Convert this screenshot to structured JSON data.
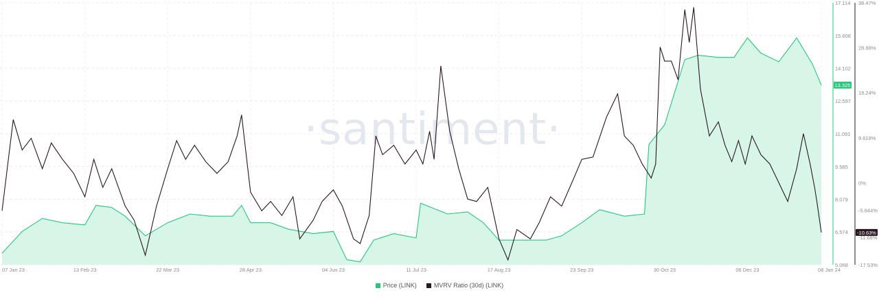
{
  "watermark": "·santiment·",
  "legend": {
    "price_label": "Price (LINK)",
    "mvrv_label": "MVRV Ratio (30d) (LINK)"
  },
  "current": {
    "price_badge": "13.325",
    "mvrv_badge": "-10.63%"
  },
  "colors": {
    "price": "#26c77c",
    "price_fill": "#d8f6e7",
    "mvrv": "#2a1523",
    "price_badge_bg": "#26c77c",
    "mvrv_badge_bg": "#2a1523"
  },
  "chart_data": {
    "type": "area",
    "x_tick_labels": [
      "07 Jan 23",
      "13 Feb 23",
      "22 Mar 23",
      "28 Apr 23",
      "04 Jun 23",
      "11 Jul 23",
      "17 Aug 23",
      "23 Sep 23",
      "30 Oct 23",
      "06 Dec 23",
      "08 Jan 24"
    ],
    "price_axis": {
      "ticks": [
        "17.114",
        "15.608",
        "14.102",
        "12.597",
        "11.091",
        "9.585",
        "8.079",
        "6.574",
        "5.068"
      ],
      "ylim": [
        5.068,
        17.114
      ]
    },
    "mvrv_axis": {
      "ticks": [
        "38.47%",
        "28.88%",
        "19.24%",
        "9.618%",
        "0%",
        "-5.844%",
        "-11.68%",
        "-17.53%"
      ],
      "tick_values": [
        38.47,
        28.88,
        19.24,
        9.618,
        0,
        -5.844,
        -11.68,
        -17.53
      ]
    },
    "series": [
      {
        "name": "Price (LINK)",
        "axis": "price",
        "points": [
          [
            "07 Jan 23",
            5.6
          ],
          [
            "16 Jan 23",
            6.6
          ],
          [
            "25 Jan 23",
            7.2
          ],
          [
            "03 Feb 23",
            7.0
          ],
          [
            "13 Feb 23",
            6.9
          ],
          [
            "18 Feb 23",
            7.8
          ],
          [
            "25 Feb 23",
            7.7
          ],
          [
            "03 Mar 23",
            7.3
          ],
          [
            "12 Mar 23",
            6.4
          ],
          [
            "22 Mar 23",
            7.0
          ],
          [
            "01 Apr 23",
            7.4
          ],
          [
            "10 Apr 23",
            7.3
          ],
          [
            "20 Apr 23",
            7.3
          ],
          [
            "24 Apr 23",
            7.8
          ],
          [
            "28 Apr 23",
            7.0
          ],
          [
            "07 May 23",
            7.0
          ],
          [
            "15 May 23",
            6.7
          ],
          [
            "26 May 23",
            6.5
          ],
          [
            "04 Jun 23",
            6.6
          ],
          [
            "10 Jun 23",
            5.3
          ],
          [
            "16 Jun 23",
            5.2
          ],
          [
            "22 Jun 23",
            6.2
          ],
          [
            "01 Jul 23",
            6.5
          ],
          [
            "11 Jul 23",
            6.3
          ],
          [
            "13 Jul 23",
            7.9
          ],
          [
            "25 Jul 23",
            7.4
          ],
          [
            "03 Aug 23",
            7.5
          ],
          [
            "10 Aug 23",
            7.0
          ],
          [
            "17 Aug 23",
            6.2
          ],
          [
            "29 Aug 23",
            6.2
          ],
          [
            "07 Sep 23",
            6.2
          ],
          [
            "14 Sep 23",
            6.4
          ],
          [
            "23 Sep 23",
            7.0
          ],
          [
            "01 Oct 23",
            7.6
          ],
          [
            "12 Oct 23",
            7.3
          ],
          [
            "21 Oct 23",
            7.4
          ],
          [
            "23 Oct 23",
            10.6
          ],
          [
            "30 Oct 23",
            11.5
          ],
          [
            "08 Nov 23",
            14.5
          ],
          [
            "14 Nov 23",
            14.7
          ],
          [
            "23 Nov 23",
            14.6
          ],
          [
            "30 Nov 23",
            14.6
          ],
          [
            "06 Dec 23",
            15.5
          ],
          [
            "12 Dec 23",
            14.8
          ],
          [
            "20 Dec 23",
            14.4
          ],
          [
            "28 Dec 23",
            15.5
          ],
          [
            "04 Jan 24",
            14.3
          ],
          [
            "08 Jan 24",
            13.325
          ]
        ]
      },
      {
        "name": "MVRV Ratio (30d) (LINK)",
        "axis": "mvrv",
        "unit": "%",
        "points": [
          [
            "07 Jan 23",
            -6.0
          ],
          [
            "12 Jan 23",
            13.5
          ],
          [
            "16 Jan 23",
            7.0
          ],
          [
            "20 Jan 23",
            9.5
          ],
          [
            "25 Jan 23",
            3.0
          ],
          [
            "29 Jan 23",
            8.5
          ],
          [
            "03 Feb 23",
            5.0
          ],
          [
            "08 Feb 23",
            2.0
          ],
          [
            "13 Feb 23",
            -3.0
          ],
          [
            "17 Feb 23",
            5.0
          ],
          [
            "21 Feb 23",
            -1.0
          ],
          [
            "25 Feb 23",
            3.0
          ],
          [
            "03 Mar 23",
            -5.0
          ],
          [
            "07 Mar 23",
            -8.0
          ],
          [
            "12 Mar 23",
            -15.5
          ],
          [
            "17 Mar 23",
            -5.0
          ],
          [
            "22 Mar 23",
            3.0
          ],
          [
            "26 Mar 23",
            9.0
          ],
          [
            "30 Mar 23",
            5.0
          ],
          [
            "03 Apr 23",
            8.0
          ],
          [
            "08 Apr 23",
            4.5
          ],
          [
            "13 Apr 23",
            2.0
          ],
          [
            "18 Apr 23",
            4.5
          ],
          [
            "22 Apr 23",
            10.0
          ],
          [
            "24 Apr 23",
            14.5
          ],
          [
            "28 Apr 23",
            -2.0
          ],
          [
            "03 May 23",
            -6.0
          ],
          [
            "07 May 23",
            -4.0
          ],
          [
            "12 May 23",
            -7.0
          ],
          [
            "17 May 23",
            -3.0
          ],
          [
            "20 May 23",
            -12.0
          ],
          [
            "26 May 23",
            -8.0
          ],
          [
            "30 May 23",
            -4.0
          ],
          [
            "04 Jun 23",
            -1.5
          ],
          [
            "08 Jun 23",
            -5.0
          ],
          [
            "13 Jun 23",
            -12.0
          ],
          [
            "16 Jun 23",
            -13.0
          ],
          [
            "20 Jun 23",
            -7.0
          ],
          [
            "23 Jun 23",
            10.0
          ],
          [
            "26 Jun 23",
            6.0
          ],
          [
            "01 Jul 23",
            8.0
          ],
          [
            "06 Jul 23",
            4.0
          ],
          [
            "11 Jul 23",
            7.0
          ],
          [
            "14 Jul 23",
            4.0
          ],
          [
            "17 Jul 23",
            11.0
          ],
          [
            "19 Jul 23",
            5.0
          ],
          [
            "22 Jul 23",
            25.0
          ],
          [
            "26 Jul 23",
            11.0
          ],
          [
            "30 Jul 23",
            3.0
          ],
          [
            "03 Aug 23",
            -3.5
          ],
          [
            "07 Aug 23",
            -4.0
          ],
          [
            "12 Aug 23",
            -1.0
          ],
          [
            "17 Aug 23",
            -12.0
          ],
          [
            "21 Aug 23",
            -16.5
          ],
          [
            "25 Aug 23",
            -10.0
          ],
          [
            "31 Aug 23",
            -12.0
          ],
          [
            "04 Sep 23",
            -8.5
          ],
          [
            "09 Sep 23",
            -3.0
          ],
          [
            "14 Sep 23",
            -5.0
          ],
          [
            "19 Sep 23",
            0.5
          ],
          [
            "23 Sep 23",
            5.0
          ],
          [
            "28 Sep 23",
            5.5
          ],
          [
            "04 Oct 23",
            14.0
          ],
          [
            "09 Oct 23",
            19.0
          ],
          [
            "12 Oct 23",
            10.0
          ],
          [
            "16 Oct 23",
            8.0
          ],
          [
            "20 Oct 23",
            4.0
          ],
          [
            "24 Oct 23",
            1.0
          ],
          [
            "26 Oct 23",
            4.0
          ],
          [
            "28 Oct 23",
            29.0
          ],
          [
            "30 Oct 23",
            26.0
          ],
          [
            "02 Nov 23",
            26.0
          ],
          [
            "05 Nov 23",
            22.0
          ],
          [
            "08 Nov 23",
            37.0
          ],
          [
            "10 Nov 23",
            30.0
          ],
          [
            "12 Nov 23",
            37.5
          ],
          [
            "15 Nov 23",
            20.0
          ],
          [
            "19 Nov 23",
            10.0
          ],
          [
            "23 Nov 23",
            13.0
          ],
          [
            "26 Nov 23",
            8.0
          ],
          [
            "29 Nov 23",
            4.5
          ],
          [
            "02 Dec 23",
            9.0
          ],
          [
            "05 Dec 23",
            4.0
          ],
          [
            "08 Dec 23",
            10.0
          ],
          [
            "12 Dec 23",
            6.0
          ],
          [
            "16 Dec 23",
            4.0
          ],
          [
            "20 Dec 23",
            0.0
          ],
          [
            "24 Dec 23",
            -4.0
          ],
          [
            "28 Dec 23",
            3.0
          ],
          [
            "31 Dec 23",
            10.5
          ],
          [
            "03 Jan 24",
            4.0
          ],
          [
            "05 Jan 24",
            -1.0
          ],
          [
            "06 Jan 24",
            -4.0
          ],
          [
            "08 Jan 24",
            -10.63
          ]
        ]
      }
    ],
    "grid": true,
    "legend_position": "bottom-center"
  }
}
